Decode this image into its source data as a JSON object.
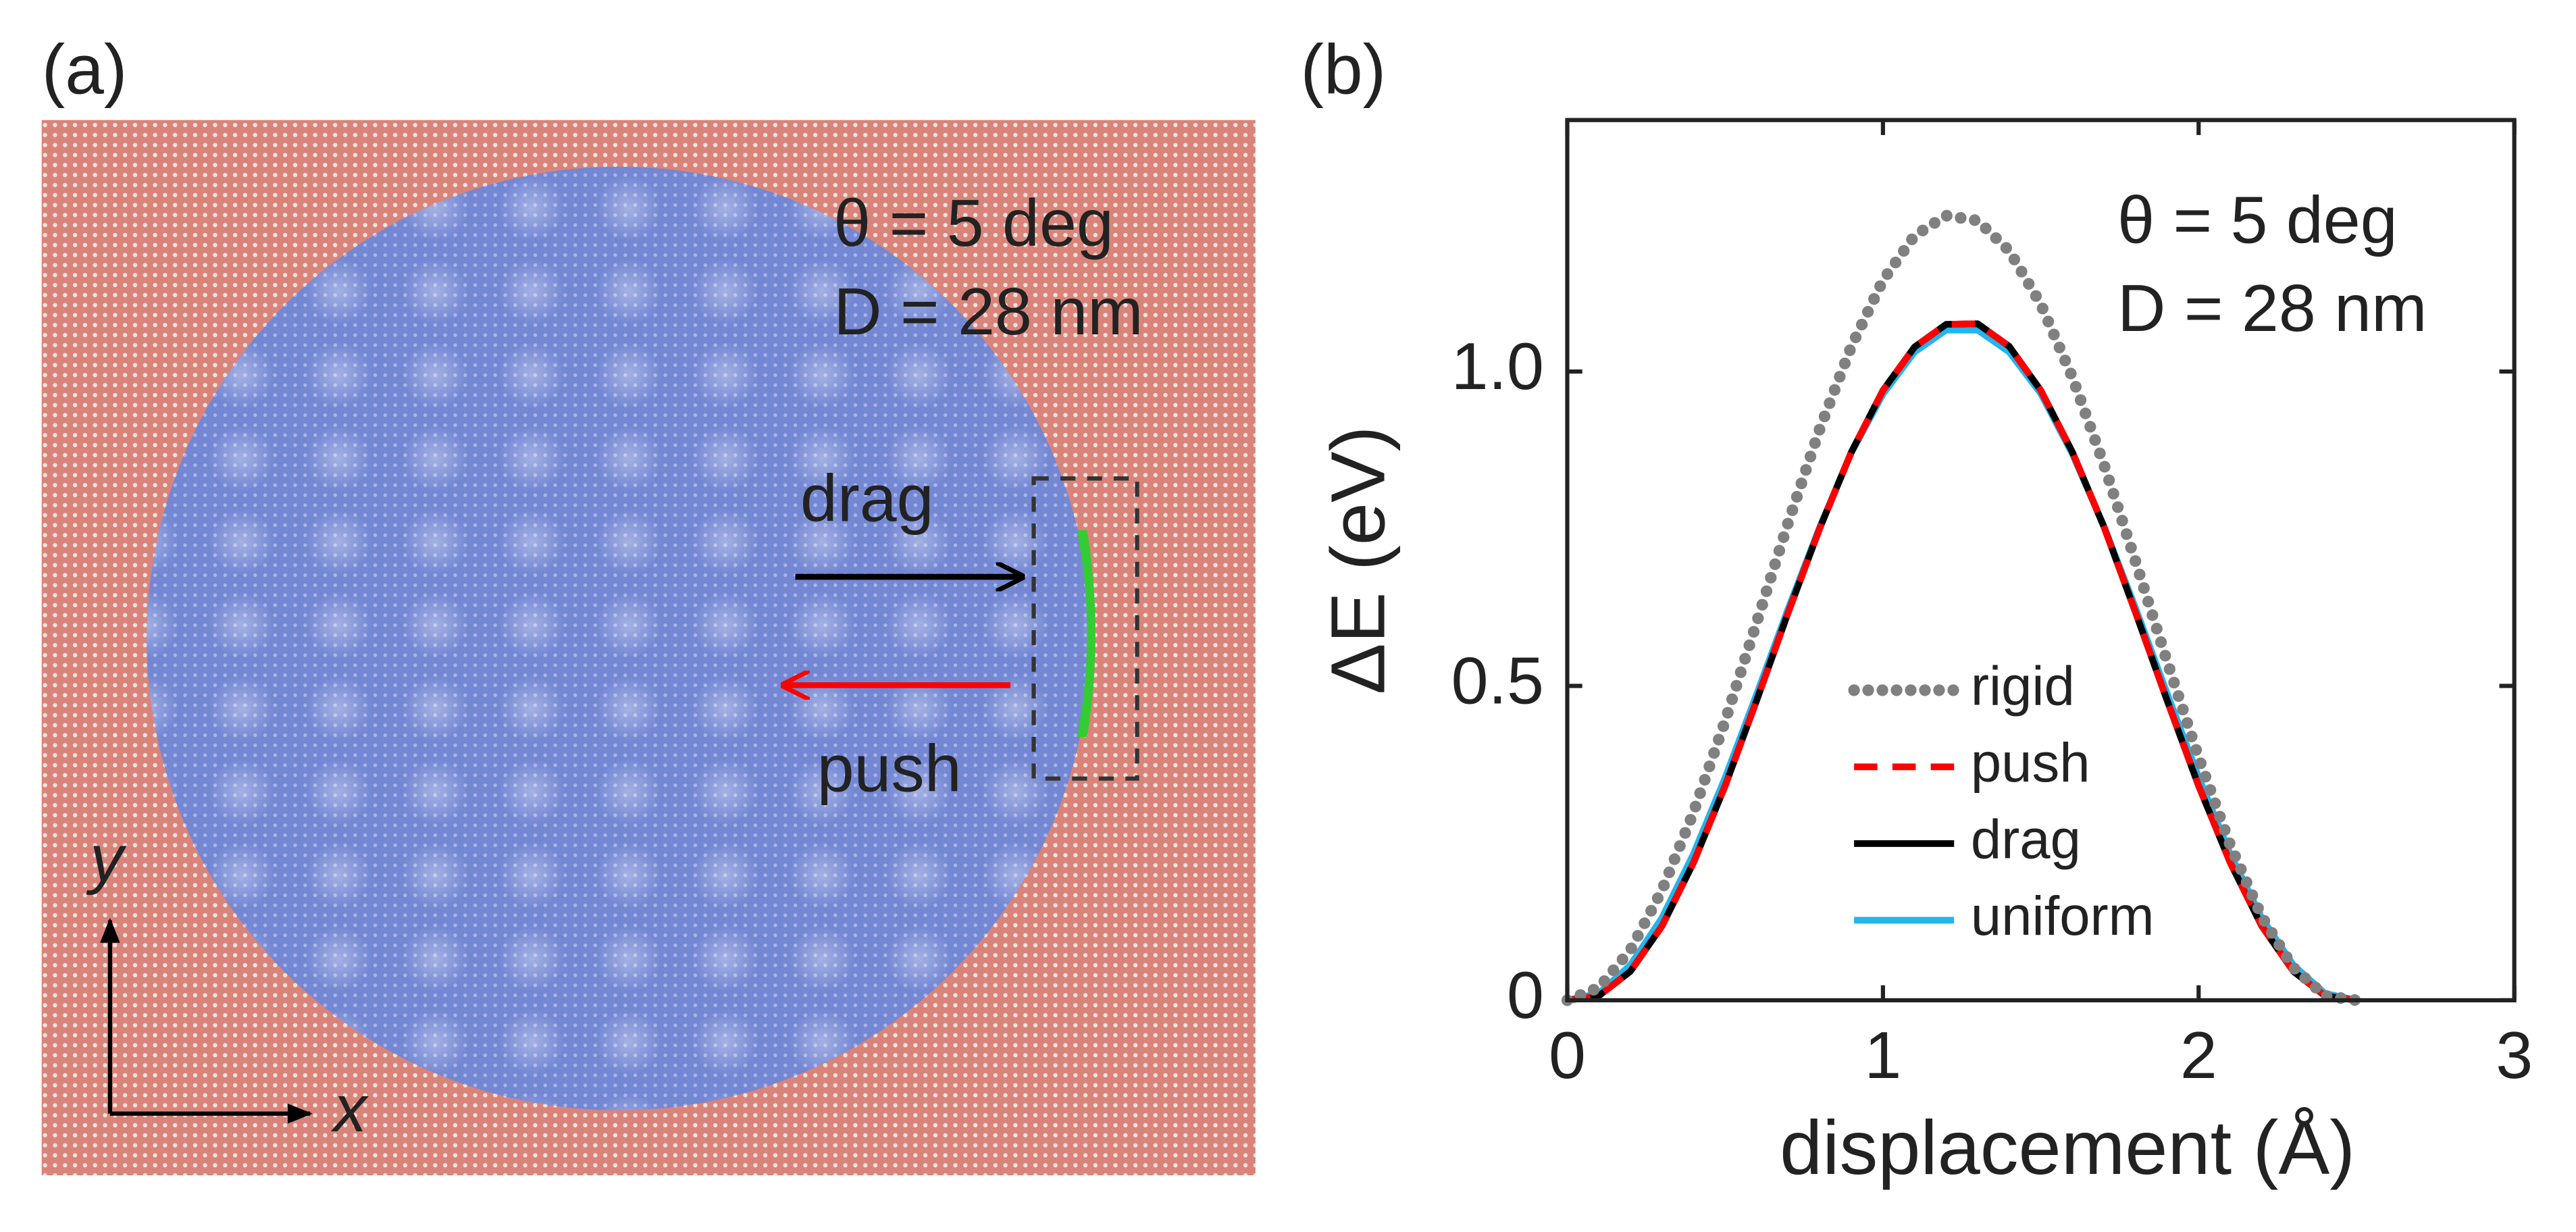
{
  "panel_a": {
    "label": "(a)",
    "annotations": [
      "θ = 5 deg",
      "D = 28 nm"
    ],
    "arrows": [
      "drag",
      "push"
    ],
    "axes": [
      "x",
      "y"
    ]
  },
  "chart_data": {
    "type": "line",
    "panel_label": "(b)",
    "annotations": [
      "θ = 5 deg",
      "D = 28 nm"
    ],
    "x_label": "displacement (Å)",
    "y_label": "ΔE (eV)",
    "x": [
      0,
      0.1,
      0.2,
      0.3,
      0.4,
      0.5,
      0.6,
      0.7,
      0.8,
      0.9,
      1.0,
      1.1,
      1.2,
      1.3,
      1.4,
      1.5,
      1.6,
      1.7,
      1.8,
      1.9,
      2.0,
      2.1,
      2.2,
      2.3,
      2.4,
      2.5
    ],
    "series": [
      {
        "name": "rigid",
        "color": "#808080",
        "style": "dotted",
        "values": [
          0,
          0.02,
          0.08,
          0.175,
          0.299,
          0.444,
          0.601,
          0.76,
          0.909,
          1.04,
          1.145,
          1.216,
          1.248,
          1.24,
          1.192,
          1.107,
          0.991,
          0.852,
          0.698,
          0.539,
          0.386,
          0.247,
          0.133,
          0.052,
          0.007,
          0
        ]
      },
      {
        "name": "push",
        "color": "#ff0000",
        "style": "dashed",
        "values": [
          0,
          0.007,
          0.046,
          0.118,
          0.219,
          0.341,
          0.477,
          0.617,
          0.751,
          0.872,
          0.97,
          1.039,
          1.075,
          1.076,
          1.04,
          0.97,
          0.872,
          0.753,
          0.617,
          0.477,
          0.341,
          0.219,
          0.118,
          0.046,
          0.007,
          0
        ]
      },
      {
        "name": "drag",
        "color": "#000000",
        "style": "solid",
        "values": [
          0,
          0.007,
          0.046,
          0.118,
          0.219,
          0.341,
          0.477,
          0.617,
          0.751,
          0.872,
          0.97,
          1.039,
          1.075,
          1.076,
          1.04,
          0.97,
          0.872,
          0.753,
          0.617,
          0.477,
          0.341,
          0.219,
          0.118,
          0.046,
          0.007,
          0
        ]
      },
      {
        "name": "uniform",
        "color": "#22b5ee",
        "style": "solid",
        "values": [
          0,
          0.011,
          0.056,
          0.131,
          0.233,
          0.354,
          0.487,
          0.623,
          0.753,
          0.871,
          0.964,
          1.031,
          1.066,
          1.066,
          1.031,
          0.965,
          0.869,
          0.754,
          0.624,
          0.488,
          0.355,
          0.233,
          0.131,
          0.056,
          0.011,
          0
        ]
      }
    ],
    "xlim": [
      0,
      3
    ],
    "xticks": [
      0,
      1,
      2,
      3
    ],
    "ylim": [
      0,
      1.4
    ],
    "yticks": [
      0,
      0.5,
      {
        "value": 1,
        "label": "1.0"
      }
    ],
    "grid": false,
    "legend": "lower center"
  }
}
